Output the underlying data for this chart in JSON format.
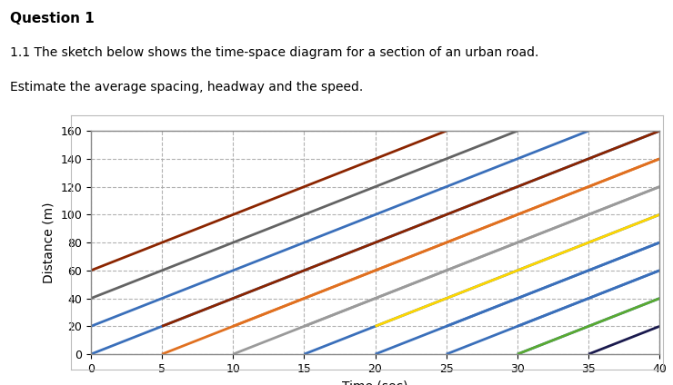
{
  "title_main": "Question 1",
  "subtitle_line1": "1.1 The sketch below shows the time-space diagram for a section of an urban road.",
  "subtitle_line2": "Estimate the average spacing, headway and the speed.",
  "xlabel": "Time (sec)",
  "ylabel": "Distance (m)",
  "xlim": [
    0,
    40
  ],
  "ylim": [
    0,
    160
  ],
  "xticks": [
    0,
    5,
    10,
    15,
    20,
    25,
    30,
    35,
    40
  ],
  "yticks": [
    0,
    20,
    40,
    60,
    80,
    100,
    120,
    140,
    160
  ],
  "speed": 4,
  "lines": [
    {
      "t0": 0,
      "d0": 0,
      "color": "#3a6fba"
    },
    {
      "t0": 0,
      "d0": 20,
      "color": "#3a6fba"
    },
    {
      "t0": 0,
      "d0": 40,
      "color": "#636363"
    },
    {
      "t0": 0,
      "d0": 60,
      "color": "#8b2500"
    },
    {
      "t0": 5,
      "d0": 0,
      "color": "#e07020"
    },
    {
      "t0": 10,
      "d0": 0,
      "color": "#9a9a9a"
    },
    {
      "t0": 15,
      "d0": 0,
      "color": "#3a6fba"
    },
    {
      "t0": 20,
      "d0": 0,
      "color": "#3a6fba"
    },
    {
      "t0": 25,
      "d0": 0,
      "color": "#3a6fba"
    },
    {
      "t0": 30,
      "d0": 0,
      "color": "#3a6fba"
    },
    {
      "t0": 5,
      "d0": 20,
      "color": "#8b2500"
    },
    {
      "t0": 10,
      "d0": 20,
      "color": "#e07020"
    },
    {
      "t0": 15,
      "d0": 20,
      "color": "#9a9a9a"
    },
    {
      "t0": 20,
      "d0": 20,
      "color": "#ffd700"
    },
    {
      "t0": 25,
      "d0": 20,
      "color": "#3a6fba"
    },
    {
      "t0": 30,
      "d0": 20,
      "color": "#3a6fba"
    },
    {
      "t0": 30,
      "d0": 0,
      "color": "#5aaa30"
    },
    {
      "t0": 35,
      "d0": 0,
      "color": "#1a1a4e"
    }
  ],
  "lw": 2.0,
  "background_color": "#ffffff",
  "plot_bg": "#ffffff",
  "grid_color": "#aaaaaa",
  "grid_style": "--",
  "border_color": "#888888",
  "title_fontsize": 11,
  "subtitle_fontsize": 10,
  "axis_label_fontsize": 10,
  "tick_fontsize": 9
}
